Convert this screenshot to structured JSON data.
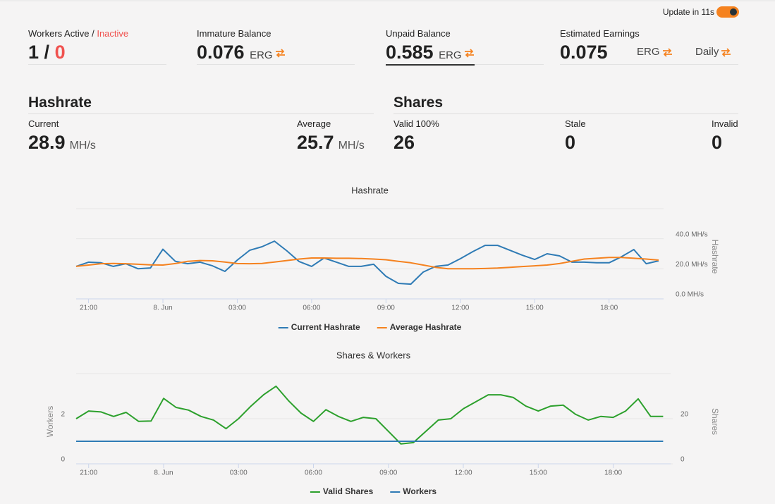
{
  "header": {
    "update_label": "Update in 11s"
  },
  "stats": {
    "workers": {
      "label_active": "Workers Active",
      "separator": "/",
      "label_inactive": "Inactive",
      "active": 1,
      "inactive": 0
    },
    "immature": {
      "label": "Immature Balance",
      "value": 0.076,
      "unit": "ERG"
    },
    "unpaid": {
      "label": "Unpaid Balance",
      "value": 0.585,
      "unit": "ERG"
    },
    "estimated": {
      "label": "Estimated Earnings",
      "value": 0.075,
      "unit": "ERG",
      "period": "Daily"
    }
  },
  "hashrate": {
    "title": "Hashrate",
    "current_label": "Current",
    "current": 28.9,
    "average_label": "Average",
    "average": 25.7,
    "unit": "MH/s"
  },
  "shares": {
    "title": "Shares",
    "valid_label": "Valid 100%",
    "valid": 26,
    "stale_label": "Stale",
    "stale": 0,
    "invalid_label": "Invalid",
    "invalid": 0
  },
  "chart_data": [
    {
      "type": "line",
      "title": "Hashrate",
      "ylabel": "Hashrate",
      "yaxis_side": "right",
      "grid": true,
      "legend": "bottom",
      "x": [
        20.5,
        21,
        21.5,
        22,
        22.5,
        23,
        23.5,
        24,
        24.5,
        25,
        25.5,
        26,
        26.5,
        27,
        27.5,
        28,
        28.5,
        29,
        29.5,
        30,
        30.5,
        31,
        31.5,
        32,
        32.5,
        33,
        33.5,
        34,
        34.5,
        35,
        35.5,
        36,
        36.5,
        37,
        37.5,
        38,
        38.5,
        39,
        39.5,
        40,
        40.5,
        41,
        41.5,
        42,
        42.5,
        43,
        43.5,
        44
      ],
      "xlim": [
        20.5,
        44.2
      ],
      "xticks": [
        {
          "value": 21,
          "label": "21:00"
        },
        {
          "value": 24,
          "label": "8. Jun"
        },
        {
          "value": 27,
          "label": "03:00"
        },
        {
          "value": 30,
          "label": "06:00"
        },
        {
          "value": 33,
          "label": "09:00"
        },
        {
          "value": 36,
          "label": "12:00"
        },
        {
          "value": 39,
          "label": "15:00"
        },
        {
          "value": 42,
          "label": "18:00"
        }
      ],
      "ylim": [
        0,
        60
      ],
      "yticks": [
        {
          "value": 0,
          "label": "0.0 MH/s"
        },
        {
          "value": 20,
          "label": "20.0 MH/s"
        },
        {
          "value": 40,
          "label": "40.0 MH/s"
        }
      ],
      "series": [
        {
          "name": "Current Hashrate",
          "color": "#2f7bb5",
          "values": [
            21.6,
            24.4,
            24,
            21.6,
            23.4,
            20,
            20.6,
            33,
            25,
            23.4,
            24.4,
            22,
            18.3,
            25.8,
            32.3,
            34.7,
            38.4,
            31.9,
            24.8,
            21.6,
            27.2,
            24.4,
            21.6,
            21.6,
            23,
            15,
            10.3,
            9.8,
            17.8,
            21.6,
            22.5,
            26.7,
            31.4,
            35.6,
            35.6,
            32.3,
            29,
            26.2,
            30,
            28.6,
            24.4,
            24.4,
            24,
            24,
            28,
            32.8,
            23.4,
            25.3
          ]
        },
        {
          "name": "Average Hashrate",
          "color": "#f5821f",
          "values": [
            21.6,
            22.5,
            23.4,
            23.6,
            23.4,
            23,
            22.6,
            22.5,
            23.5,
            25,
            25.5,
            25.3,
            24.5,
            23.5,
            23.4,
            23.6,
            24.5,
            25.5,
            26.5,
            27.2,
            27.2,
            27,
            27,
            26.8,
            26.5,
            26,
            25,
            24,
            22.5,
            21,
            20,
            20,
            20,
            20.2,
            20.5,
            21,
            21.5,
            22,
            22.5,
            23.5,
            25,
            26.5,
            27,
            27.5,
            27.5,
            27,
            26.5,
            25.8
          ]
        }
      ]
    },
    {
      "type": "line",
      "title": "Shares & Workers",
      "ylabel": "Workers",
      "y2label": "Shares",
      "grid": true,
      "legend": "bottom",
      "x": [
        20.5,
        21,
        21.5,
        22,
        22.5,
        23,
        23.5,
        24,
        24.5,
        25,
        25.5,
        26,
        26.5,
        27,
        27.5,
        28,
        28.5,
        29,
        29.5,
        30,
        30.5,
        31,
        31.5,
        32,
        32.5,
        33,
        33.5,
        34,
        34.5,
        35,
        35.5,
        36,
        36.5,
        37,
        37.5,
        38,
        38.5,
        39,
        39.5,
        40,
        40.5,
        41,
        41.5,
        42,
        42.5,
        43,
        43.5,
        44
      ],
      "xlim": [
        20.5,
        44.3
      ],
      "xticks": [
        {
          "value": 21,
          "label": "21:00"
        },
        {
          "value": 24,
          "label": "8. Jun"
        },
        {
          "value": 27,
          "label": "03:00"
        },
        {
          "value": 30,
          "label": "06:00"
        },
        {
          "value": 33,
          "label": "09:00"
        },
        {
          "value": 36,
          "label": "12:00"
        },
        {
          "value": 39,
          "label": "15:00"
        },
        {
          "value": 42,
          "label": "18:00"
        }
      ],
      "ylim": [
        0,
        4
      ],
      "yticks": [
        0,
        2
      ],
      "y2lim": [
        0,
        40
      ],
      "y2ticks": [
        0,
        20
      ],
      "series": [
        {
          "name": "Valid Shares",
          "color": "#2ca02c",
          "axis": "y2",
          "values": [
            20,
            23.4,
            23,
            21,
            22.8,
            18.8,
            19,
            29,
            25,
            23.8,
            21,
            19.4,
            15.6,
            20,
            25.6,
            30.6,
            34.4,
            28,
            22.5,
            18.8,
            24,
            21,
            18.8,
            20.6,
            20,
            14.4,
            8.8,
            9.4,
            14.4,
            19.4,
            20,
            24.4,
            27.5,
            30.6,
            30.6,
            29.4,
            25.6,
            23.4,
            25.6,
            26,
            21.9,
            19.4,
            21,
            20.6,
            23.4,
            28.8,
            21,
            21
          ]
        },
        {
          "name": "Workers",
          "color": "#2f7bb5",
          "values": [
            1,
            1,
            1,
            1,
            1,
            1,
            1,
            1,
            1,
            1,
            1,
            1,
            1,
            1,
            1,
            1,
            1,
            1,
            1,
            1,
            1,
            1,
            1,
            1,
            1,
            1,
            1,
            1,
            1,
            1,
            1,
            1,
            1,
            1,
            1,
            1,
            1,
            1,
            1,
            1,
            1,
            1,
            1,
            1,
            1,
            1,
            1,
            1
          ]
        }
      ]
    }
  ]
}
